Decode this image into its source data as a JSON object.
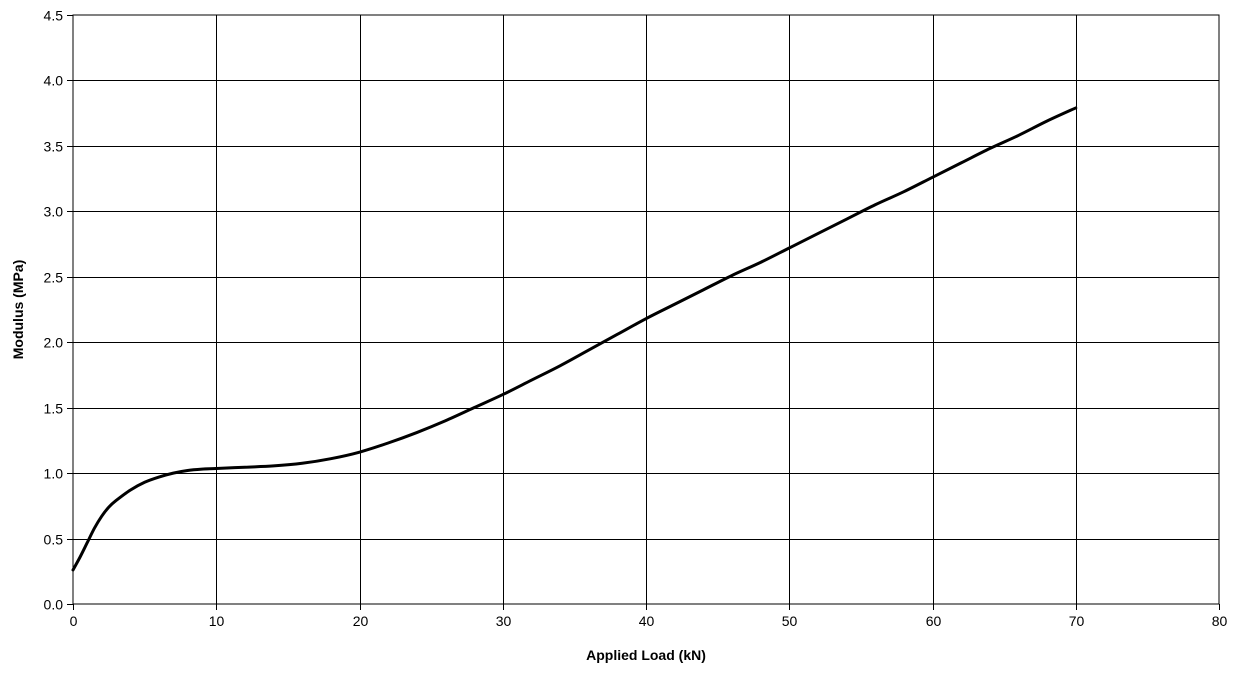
{
  "chart_data": {
    "type": "line",
    "title": "",
    "xlabel": "Applied Load (kN)",
    "ylabel": "Modulus (MPa)",
    "xlim": [
      0,
      80
    ],
    "ylim": [
      0,
      4.5
    ],
    "x_ticks": [
      "0",
      "10",
      "20",
      "30",
      "40",
      "50",
      "60",
      "70",
      "80"
    ],
    "y_ticks": [
      "0.0",
      "0.5",
      "1.0",
      "1.5",
      "2.0",
      "2.5",
      "3.0",
      "3.5",
      "4.0",
      "4.5"
    ],
    "grid": true,
    "legend": "none",
    "colors": {
      "line": "#000000",
      "grid": "#000000",
      "background": "#ffffff"
    },
    "series": [
      {
        "x": [
          0,
          0.5,
          1,
          1.5,
          2,
          2.5,
          3,
          4,
          5,
          6,
          7,
          8,
          9,
          10,
          12,
          14,
          16,
          18,
          20,
          22,
          24,
          26,
          28,
          30,
          32,
          34,
          36,
          38,
          40,
          42,
          44,
          46,
          48,
          50,
          52,
          54,
          56,
          58,
          60,
          62,
          64,
          66,
          68,
          70
        ],
        "y": [
          0.26,
          0.36,
          0.47,
          0.58,
          0.67,
          0.74,
          0.79,
          0.87,
          0.93,
          0.97,
          1.0,
          1.02,
          1.03,
          1.035,
          1.045,
          1.055,
          1.075,
          1.11,
          1.16,
          1.23,
          1.31,
          1.4,
          1.5,
          1.6,
          1.71,
          1.82,
          1.94,
          2.06,
          2.18,
          2.29,
          2.4,
          2.51,
          2.61,
          2.72,
          2.83,
          2.94,
          3.05,
          3.15,
          3.26,
          3.37,
          3.48,
          3.58,
          3.69,
          3.79
        ]
      }
    ]
  }
}
